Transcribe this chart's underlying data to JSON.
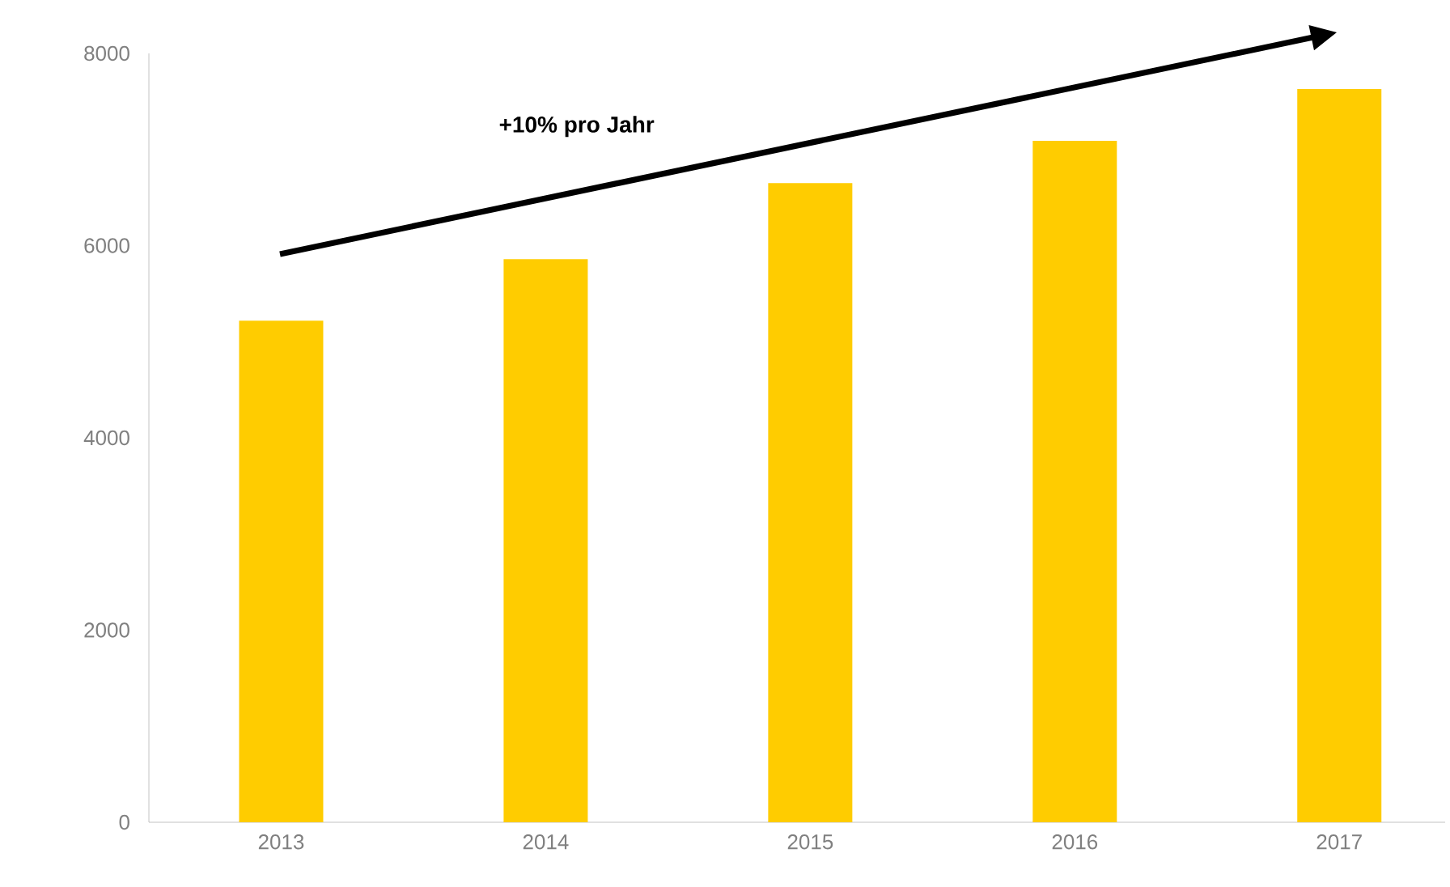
{
  "chart_data": {
    "type": "bar",
    "categories": [
      "2013",
      "2014",
      "2015",
      "2016",
      "2017"
    ],
    "values": [
      5220,
      5860,
      6650,
      7090,
      7630
    ],
    "color": "#ffcc00",
    "ylim": [
      0,
      8000
    ],
    "yticks": [
      0,
      2000,
      4000,
      6000,
      8000
    ],
    "annotations": [
      "+10% pro Jahr"
    ]
  }
}
